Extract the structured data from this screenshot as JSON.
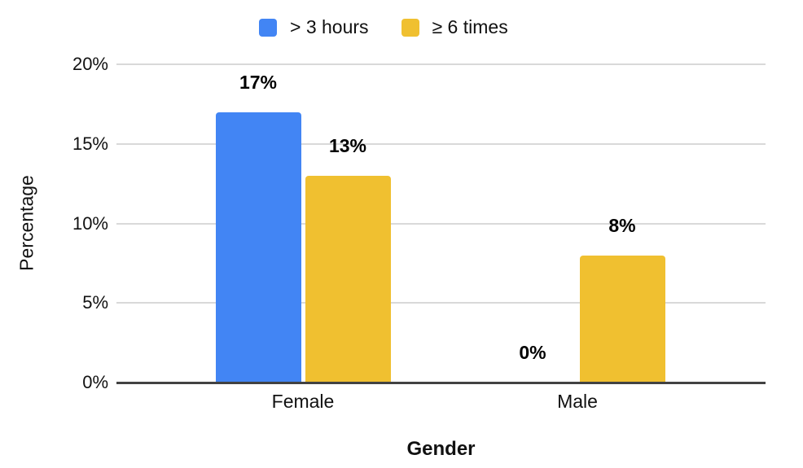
{
  "chart_data": {
    "type": "bar",
    "categories": [
      "Female",
      "Male"
    ],
    "series": [
      {
        "name": "> 3 hours",
        "color": "#4285F4",
        "values": [
          17,
          0
        ]
      },
      {
        "name": "≥ 6 times",
        "color": "#F0C030",
        "values": [
          13,
          8
        ]
      }
    ],
    "data_labels": [
      [
        "17%",
        "0%"
      ],
      [
        "13%",
        "8%"
      ]
    ],
    "title": "",
    "xlabel": "Gender",
    "ylabel": "Percentage",
    "ylim": [
      0,
      20
    ],
    "y_ticks": [
      {
        "value": 0,
        "label": "0%"
      },
      {
        "value": 5,
        "label": "5%"
      },
      {
        "value": 10,
        "label": "10%"
      },
      {
        "value": 15,
        "label": "15%"
      },
      {
        "value": 20,
        "label": "20%"
      }
    ],
    "grid": true,
    "legend_position": "top",
    "colors": {
      "gridline": "#d9d9d9",
      "axis_line": "#424242",
      "label_text": "#111111",
      "background": "#ffffff"
    }
  }
}
